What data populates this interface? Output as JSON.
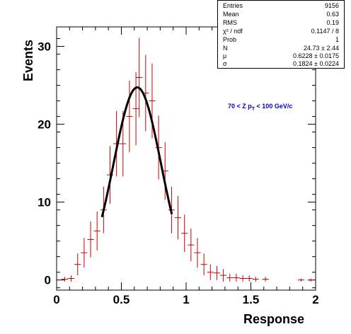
{
  "chart_data": {
    "type": "histogram",
    "xlabel": "Response",
    "ylabel": "Events",
    "xlim": [
      0,
      2
    ],
    "ylim": [
      -1.3,
      32.5
    ],
    "x_ticks": [
      "0",
      "0.5",
      "1",
      "1.5",
      "2"
    ],
    "y_ticks": [
      "0",
      "10",
      "20",
      "30"
    ],
    "annotation": {
      "prefix": "70 < Z p",
      "subscript": "T",
      "suffix": " < 100 GeV/c",
      "color": "#0000cc"
    },
    "points": [
      {
        "x": 0.0625,
        "y": 0.1,
        "err": 0.3
      },
      {
        "x": 0.1125,
        "y": 0.2,
        "err": 0.4
      },
      {
        "x": 0.1625,
        "y": 2.0,
        "err": 1.4
      },
      {
        "x": 0.2125,
        "y": 3.5,
        "err": 1.9
      },
      {
        "x": 0.2625,
        "y": 5.2,
        "err": 2.3
      },
      {
        "x": 0.3125,
        "y": 6.3,
        "err": 2.5
      },
      {
        "x": 0.3625,
        "y": 9.0,
        "err": 3.0
      },
      {
        "x": 0.4125,
        "y": 13.5,
        "err": 3.7
      },
      {
        "x": 0.4625,
        "y": 17.5,
        "err": 4.2
      },
      {
        "x": 0.5125,
        "y": 17.5,
        "err": 4.2
      },
      {
        "x": 0.5625,
        "y": 21.0,
        "err": 4.6
      },
      {
        "x": 0.6125,
        "y": 22.0,
        "err": 4.7
      },
      {
        "x": 0.6375,
        "y": 26.0,
        "err": 5.1
      },
      {
        "x": 0.6875,
        "y": 24.0,
        "err": 4.9
      },
      {
        "x": 0.7375,
        "y": 23.0,
        "err": 4.8
      },
      {
        "x": 0.7875,
        "y": 17.0,
        "err": 4.1
      },
      {
        "x": 0.8375,
        "y": 14.0,
        "err": 3.7
      },
      {
        "x": 0.8875,
        "y": 9.0,
        "err": 3.0
      },
      {
        "x": 0.9375,
        "y": 8.0,
        "err": 2.8
      },
      {
        "x": 0.9875,
        "y": 6.0,
        "err": 2.4
      },
      {
        "x": 1.0375,
        "y": 4.5,
        "err": 2.1
      },
      {
        "x": 1.0875,
        "y": 3.5,
        "err": 1.9
      },
      {
        "x": 1.1375,
        "y": 2.0,
        "err": 1.4
      },
      {
        "x": 1.1875,
        "y": 1.0,
        "err": 1.0
      },
      {
        "x": 1.2375,
        "y": 0.9,
        "err": 0.9
      },
      {
        "x": 1.2875,
        "y": 0.6,
        "err": 0.8
      },
      {
        "x": 1.3375,
        "y": 0.3,
        "err": 0.5
      },
      {
        "x": 1.3875,
        "y": 0.3,
        "err": 0.5
      },
      {
        "x": 1.4375,
        "y": 0.2,
        "err": 0.4
      },
      {
        "x": 1.4875,
        "y": 0.2,
        "err": 0.4
      },
      {
        "x": 1.5375,
        "y": 0.1,
        "err": 0.3
      },
      {
        "x": 1.6125,
        "y": 0.1,
        "err": 0.3
      },
      {
        "x": 1.8875,
        "y": 0.0,
        "err": 0.2
      },
      {
        "x": 1.9625,
        "y": 0.0,
        "err": 0.2
      }
    ],
    "bin_half_width": 0.025,
    "fit": {
      "N": 24.73,
      "mu": 0.6228,
      "sigma": 0.1824,
      "x_range": [
        0.35,
        0.89
      ]
    },
    "colors": {
      "data": "#cc0000",
      "fit": "#000000",
      "axes": "#000000"
    }
  },
  "stats": {
    "rows": [
      {
        "key": "Entries",
        "value": "9156"
      },
      {
        "key": "Mean",
        "value": "0.63"
      },
      {
        "key": "RMS",
        "value": "0.19"
      },
      {
        "key": "χ² / ndf",
        "value": "0.1147 / 8"
      },
      {
        "key": "Prob",
        "value": "1"
      },
      {
        "key": "N",
        "value": "24.73 ± 2.44"
      },
      {
        "key": "μ",
        "value": "0.6228 ± 0.0175"
      },
      {
        "key": "σ",
        "value": "0.1824 ± 0.0224"
      }
    ]
  }
}
